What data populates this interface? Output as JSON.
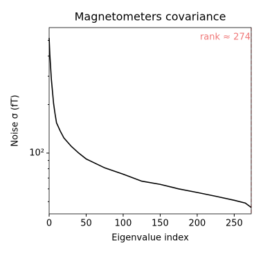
{
  "chart_data": {
    "type": "line",
    "title": "Magnetometers covariance",
    "x_label": "Eigenvalue index",
    "y_label": "Noise σ (fT)",
    "x": [
      0,
      1,
      3,
      6,
      8,
      10,
      15,
      20,
      30,
      40,
      50,
      75,
      100,
      125,
      150,
      175,
      200,
      225,
      250,
      265,
      273
    ],
    "series": [
      {
        "color": "#000000",
        "values": [
          518,
          404,
          287,
          203,
          175,
          154,
          137,
          124,
          110,
          100,
          92,
          81,
          74,
          67,
          64,
          60,
          57,
          54,
          51,
          49,
          46
        ]
      }
    ],
    "xlim": [
      0,
      273
    ],
    "xticks": [
      0,
      50,
      100,
      150,
      200,
      250
    ],
    "ylim": [
      42,
      600
    ],
    "y_log": true,
    "yticks": [
      {
        "value": 100,
        "label": "10²"
      }
    ],
    "y_minor_ticks": [
      50,
      60,
      70,
      80,
      90,
      200,
      300,
      400,
      500
    ],
    "rank_line_x": 273,
    "rank_line_color": "#ff0000",
    "annotation": "rank ≈ 274",
    "annotation_color": "#f07878"
  }
}
